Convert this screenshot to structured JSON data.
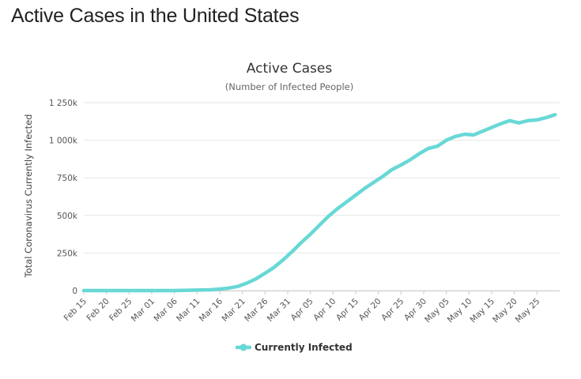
{
  "page": {
    "heading": "Active Cases in the United States"
  },
  "colors": {
    "series": "#68d8d6",
    "grid": "#e6e6e6",
    "axis": "#cccccc"
  },
  "chart_data": {
    "type": "line",
    "title": "Active Cases",
    "subtitle": "(Number of Infected People)",
    "xlabel": "",
    "ylabel": "Total Coronavirus Currently Infected",
    "ylim": [
      0,
      1250000
    ],
    "y_ticks": [
      0,
      250000,
      500000,
      750000,
      1000000,
      1250000
    ],
    "y_tick_labels": [
      "0",
      "250k",
      "500k",
      "750k",
      "1 000k",
      "1 250k"
    ],
    "x_start": "Feb 15",
    "x_tick_labels": [
      "Feb 15",
      "Feb 20",
      "Feb 25",
      "Mar 01",
      "Mar 06",
      "Mar 11",
      "Mar 16",
      "Mar 21",
      "Mar 26",
      "Mar 31",
      "Apr 05",
      "Apr 10",
      "Apr 15",
      "Apr 20",
      "Apr 25",
      "Apr 30",
      "May 05",
      "May 10",
      "May 15",
      "May 20",
      "May 25"
    ],
    "grid": true,
    "legend_position": "bottom-center",
    "series": [
      {
        "name": "Currently Infected",
        "x": [
          "Feb 15",
          "Feb 20",
          "Feb 25",
          "Mar 01",
          "Mar 06",
          "Mar 11",
          "Mar 14",
          "Mar 16",
          "Mar 18",
          "Mar 20",
          "Mar 22",
          "Mar 24",
          "Mar 26",
          "Mar 28",
          "Mar 30",
          "Apr 01",
          "Apr 03",
          "Apr 05",
          "Apr 07",
          "Apr 09",
          "Apr 11",
          "Apr 13",
          "Apr 15",
          "Apr 17",
          "Apr 19",
          "Apr 21",
          "Apr 23",
          "Apr 25",
          "Apr 27",
          "Apr 29",
          "May 01",
          "May 03",
          "May 05",
          "May 07",
          "May 09",
          "May 11",
          "May 13",
          "May 15",
          "May 17",
          "May 19",
          "May 21",
          "May 23",
          "May 25",
          "May 27",
          "May 29"
        ],
        "values": [
          0,
          0,
          0,
          0,
          0,
          3000,
          5000,
          10000,
          17000,
          28000,
          50000,
          78000,
          115000,
          155000,
          205000,
          260000,
          320000,
          375000,
          435000,
          495000,
          545000,
          590000,
          635000,
          680000,
          720000,
          760000,
          805000,
          835000,
          870000,
          910000,
          945000,
          960000,
          1000000,
          1025000,
          1040000,
          1035000,
          1060000,
          1085000,
          1110000,
          1130000,
          1115000,
          1130000,
          1135000,
          1150000,
          1170000
        ]
      }
    ]
  }
}
